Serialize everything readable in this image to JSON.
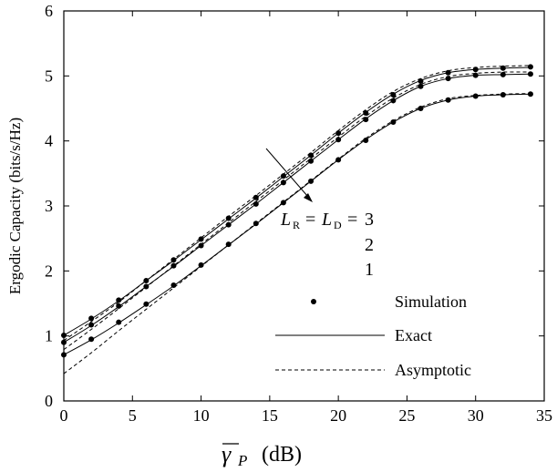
{
  "chart_data": {
    "type": "line",
    "title": "",
    "xlabel_symbol": "γ",
    "xlabel_subscript": "P",
    "xlabel_unit": "(dB)",
    "ylabel": "Ergodic Capacity (bits/s/Hz)",
    "xlim": [
      0,
      35
    ],
    "ylim": [
      0,
      6
    ],
    "xticks": [
      0,
      5,
      10,
      15,
      20,
      25,
      30,
      35
    ],
    "yticks": [
      0,
      1,
      2,
      3,
      4,
      5,
      6
    ],
    "grid": false,
    "legend_position": "right",
    "legend": [
      {
        "style": "marker",
        "label": "Simulation"
      },
      {
        "style": "solid",
        "label": "Exact"
      },
      {
        "style": "dashed",
        "label": "Asymptotic"
      }
    ],
    "annotation": {
      "L": "L",
      "R": "R",
      "eq1": " = ",
      "Lsym": "L",
      "D": "D",
      "eq2": " = ",
      "v3": "3",
      "v2": "2",
      "v1": "1"
    },
    "x_sim": [
      0,
      2,
      4,
      6,
      8,
      10,
      12,
      14,
      16,
      18,
      20,
      22,
      24,
      26,
      28,
      30,
      32,
      34
    ],
    "series": [
      {
        "name": "3",
        "exact": [
          1.01,
          1.26,
          1.54,
          1.85,
          2.16,
          2.48,
          2.8,
          3.12,
          3.45,
          3.78,
          4.12,
          4.44,
          4.72,
          4.93,
          5.05,
          5.1,
          5.12,
          5.13
        ],
        "asymptotic": [
          0.93,
          1.22,
          1.52,
          1.85,
          2.18,
          2.51,
          2.84,
          3.16,
          3.49,
          3.82,
          4.16,
          4.48,
          4.76,
          4.96,
          5.08,
          5.13,
          5.15,
          5.16
        ],
        "simulation": [
          1.01,
          1.27,
          1.55,
          1.85,
          2.17,
          2.49,
          2.81,
          3.13,
          3.46,
          3.78,
          4.12,
          4.43,
          4.71,
          4.92,
          5.05,
          5.1,
          5.12,
          5.14
        ]
      },
      {
        "name": "2",
        "exact": [
          0.9,
          1.16,
          1.45,
          1.76,
          2.07,
          2.39,
          2.71,
          3.03,
          3.36,
          3.69,
          4.02,
          4.34,
          4.62,
          4.84,
          4.96,
          5.01,
          5.02,
          5.03
        ],
        "asymptotic": [
          0.79,
          1.1,
          1.42,
          1.75,
          2.08,
          2.41,
          2.74,
          3.07,
          3.4,
          3.73,
          4.06,
          4.38,
          4.66,
          4.87,
          4.99,
          5.04,
          5.06,
          5.06
        ],
        "simulation": [
          0.9,
          1.17,
          1.46,
          1.76,
          2.08,
          2.39,
          2.71,
          3.03,
          3.36,
          3.69,
          4.02,
          4.33,
          4.62,
          4.84,
          4.96,
          5.01,
          5.02,
          5.03
        ]
      },
      {
        "name": "1",
        "exact": [
          0.71,
          0.94,
          1.2,
          1.48,
          1.77,
          2.08,
          2.4,
          2.72,
          3.05,
          3.38,
          3.71,
          4.02,
          4.29,
          4.5,
          4.63,
          4.69,
          4.71,
          4.72
        ],
        "asymptotic": [
          0.42,
          0.74,
          1.08,
          1.41,
          1.74,
          2.07,
          2.4,
          2.73,
          3.06,
          3.39,
          3.72,
          4.04,
          4.31,
          4.52,
          4.65,
          4.7,
          4.72,
          4.73
        ],
        "simulation": [
          0.71,
          0.95,
          1.21,
          1.49,
          1.78,
          2.09,
          2.41,
          2.73,
          3.05,
          3.38,
          3.71,
          4.01,
          4.29,
          4.5,
          4.63,
          4.69,
          4.71,
          4.72
        ]
      }
    ]
  }
}
